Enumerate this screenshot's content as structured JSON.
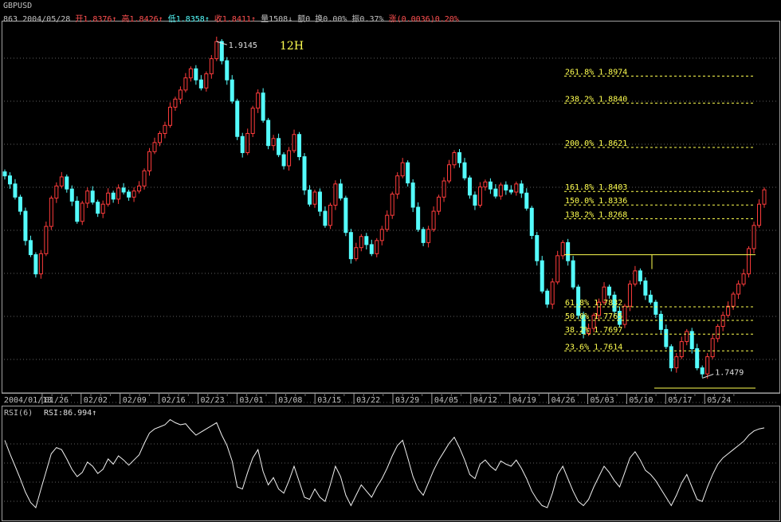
{
  "header": {
    "symbol": "GBPUSD",
    "prefix": "863 2004/05/28",
    "open_label": "开",
    "open": "1.8376↑",
    "high_label": "高",
    "high": "1.8426↑",
    "low_label": "低",
    "low": "1.8358↑",
    "close_label": "收",
    "close": "1.8411↑",
    "volume": "量1508↓",
    "amount": "额0",
    "turnover": "换0.00%",
    "amplitude": "振0.37%",
    "change_label": "涨",
    "change": "(0.0036)0.20%"
  },
  "chart_data": [
    {
      "type": "candlestick",
      "timeframe": "12H",
      "ylim": [
        1.741,
        1.924
      ],
      "x_ticks": [
        "2004/01/13",
        "01/26",
        "02/02",
        "02/09",
        "02/16",
        "02/23",
        "03/01",
        "03/08",
        "03/15",
        "03/22",
        "03/29",
        "04/05",
        "04/12",
        "04/19",
        "04/26",
        "05/03",
        "05/10",
        "05/17",
        "05/24"
      ],
      "closes": [
        1.848,
        1.844,
        1.8375,
        1.8305,
        1.816,
        1.809,
        1.7995,
        1.8095,
        1.823,
        1.837,
        1.843,
        1.8475,
        1.8415,
        1.8355,
        1.8255,
        1.8345,
        1.8405,
        1.835,
        1.8295,
        1.834,
        1.8395,
        1.8365,
        1.842,
        1.84,
        1.8375,
        1.8405,
        1.843,
        1.8505,
        1.86,
        1.8645,
        1.869,
        1.873,
        1.882,
        1.886,
        1.8905,
        1.8965,
        1.901,
        1.8955,
        1.8915,
        1.8985,
        1.906,
        1.9145,
        1.905,
        1.8955,
        1.885,
        1.8675,
        1.8595,
        1.869,
        1.8815,
        1.889,
        1.8755,
        1.863,
        1.8665,
        1.8585,
        1.853,
        1.8605,
        1.8685,
        1.8575,
        1.841,
        1.834,
        1.84,
        1.8305,
        1.8235,
        1.8335,
        1.844,
        1.837,
        1.82,
        1.807,
        1.8125,
        1.818,
        1.814,
        1.8095,
        1.816,
        1.8215,
        1.8285,
        1.839,
        1.848,
        1.8545,
        1.8445,
        1.8325,
        1.8215,
        1.815,
        1.8215,
        1.8305,
        1.8375,
        1.8455,
        1.8535,
        1.8595,
        1.8545,
        1.847,
        1.8385,
        1.8335,
        1.8425,
        1.845,
        1.8415,
        1.838,
        1.8435,
        1.841,
        1.84,
        1.844,
        1.8395,
        1.832,
        1.8185,
        1.806,
        1.791,
        1.7845,
        1.7955,
        1.8085,
        1.815,
        1.806,
        1.793,
        1.779,
        1.77,
        1.7725,
        1.779,
        1.7855,
        1.793,
        1.789,
        1.781,
        1.7745,
        1.7835,
        1.7945,
        1.801,
        1.796,
        1.789,
        1.7855,
        1.7795,
        1.772,
        1.7635,
        1.753,
        1.7585,
        1.766,
        1.771,
        1.7625,
        1.753,
        1.75,
        1.7585,
        1.7675,
        1.7735,
        1.779,
        1.7835,
        1.7895,
        1.7945,
        1.7995,
        1.812,
        1.8235,
        1.834,
        1.8411
      ],
      "annotations": [
        {
          "text": "1.9145",
          "type": "high"
        },
        {
          "text": "1.7479",
          "type": "low"
        }
      ]
    },
    {
      "type": "fibonacci-levels",
      "levels": [
        {
          "text": "261.8% 1.8974",
          "value": 1.8974
        },
        {
          "text": "238.2% 1.8840",
          "value": 1.884
        },
        {
          "text": "200.0% 1.8621",
          "value": 1.8621
        },
        {
          "text": "161.8% 1.8403",
          "value": 1.8403
        },
        {
          "text": "150.0% 1.8336",
          "value": 1.8336
        },
        {
          "text": "138.2% 1.8268",
          "value": 1.8268
        },
        {
          "text": "61.8% 1.7832",
          "value": 1.7832
        },
        {
          "text": "50.0% 1.7765",
          "value": 1.7765
        },
        {
          "text": "38.2% 1.7697",
          "value": 1.7697
        },
        {
          "text": "23.6% 1.7614",
          "value": 1.7614
        }
      ],
      "resistance": 1.809
    },
    {
      "type": "line",
      "title": "RSI(6)",
      "value_text": "RSI:86.994↑",
      "ylim": [
        0,
        100
      ],
      "values": [
        75,
        62,
        50,
        38,
        25,
        15,
        10,
        28,
        45,
        62,
        68,
        66,
        57,
        47,
        40,
        44,
        54,
        50,
        43,
        47,
        57,
        52,
        60,
        56,
        51,
        56,
        61,
        72,
        82,
        86,
        88,
        90,
        95,
        92,
        90,
        91,
        85,
        80,
        83,
        86,
        89,
        92,
        80,
        70,
        55,
        30,
        28,
        44,
        58,
        66,
        45,
        32,
        39,
        28,
        24,
        36,
        50,
        35,
        20,
        18,
        28,
        20,
        16,
        32,
        50,
        40,
        22,
        12,
        22,
        32,
        26,
        20,
        30,
        38,
        48,
        60,
        70,
        75,
        58,
        40,
        28,
        22,
        34,
        46,
        56,
        64,
        72,
        78,
        68,
        56,
        42,
        38,
        52,
        56,
        50,
        46,
        55,
        52,
        50,
        56,
        48,
        38,
        26,
        18,
        12,
        10,
        24,
        42,
        50,
        38,
        26,
        16,
        12,
        18,
        30,
        40,
        50,
        44,
        36,
        30,
        44,
        58,
        64,
        56,
        46,
        42,
        36,
        28,
        20,
        12,
        22,
        34,
        42,
        30,
        18,
        16,
        30,
        42,
        52,
        58,
        62,
        66,
        70,
        74,
        80,
        84,
        86,
        87
      ]
    }
  ]
}
